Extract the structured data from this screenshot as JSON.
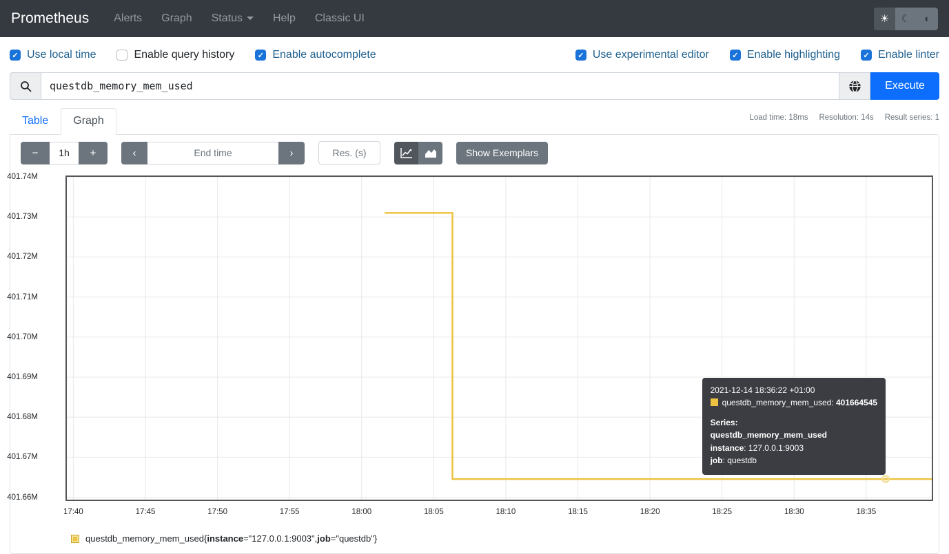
{
  "navbar": {
    "brand": "Prometheus",
    "items": [
      {
        "label": "Alerts"
      },
      {
        "label": "Graph"
      },
      {
        "label": "Status",
        "dropdown": true
      },
      {
        "label": "Help"
      },
      {
        "label": "Classic UI"
      }
    ],
    "theme": {
      "light_icon": "☀",
      "dark_icon": "☾",
      "auto_icon": "◐",
      "active": "light"
    }
  },
  "settings": {
    "left": [
      {
        "label": "Use local time",
        "checked": true
      },
      {
        "label": "Enable query history",
        "checked": false
      },
      {
        "label": "Enable autocomplete",
        "checked": true
      }
    ],
    "right": [
      {
        "label": "Use experimental editor",
        "checked": true
      },
      {
        "label": "Enable highlighting",
        "checked": true
      },
      {
        "label": "Enable linter",
        "checked": true
      }
    ],
    "check_glyph": "✓"
  },
  "query": {
    "value": "questdb_memory_mem_used",
    "execute_label": "Execute"
  },
  "tabs": {
    "table": "Table",
    "graph": "Graph"
  },
  "stats": {
    "load_time": "Load time: 18ms",
    "resolution": "Resolution: 14s",
    "result_series": "Result series: 1"
  },
  "toolbar": {
    "minus": "−",
    "range": "1h",
    "plus": "+",
    "prev": "‹",
    "end_time_placeholder": "End time",
    "next": "›",
    "res_placeholder": "Res. (s)",
    "show_exemplars": "Show Exemplars"
  },
  "chart_data": {
    "type": "line",
    "x_axis": "time (local), ticks every 5 minutes",
    "x_range_minutes": [
      -0.45,
      59.55
    ],
    "x_ticks": [
      {
        "m": 0,
        "label": "17:40"
      },
      {
        "m": 5,
        "label": "17:45"
      },
      {
        "m": 10,
        "label": "17:50"
      },
      {
        "m": 15,
        "label": "17:55"
      },
      {
        "m": 20,
        "label": "18:00"
      },
      {
        "m": 25,
        "label": "18:05"
      },
      {
        "m": 30,
        "label": "18:10"
      },
      {
        "m": 35,
        "label": "18:15"
      },
      {
        "m": 40,
        "label": "18:20"
      },
      {
        "m": 45,
        "label": "18:25"
      },
      {
        "m": 50,
        "label": "18:30"
      },
      {
        "m": 55,
        "label": "18:35"
      }
    ],
    "y_range": [
      401659400,
      401740000
    ],
    "y_ticks": [
      {
        "v": 401660000,
        "label": "401.66M"
      },
      {
        "v": 401670000,
        "label": "401.67M"
      },
      {
        "v": 401680000,
        "label": "401.68M"
      },
      {
        "v": 401690000,
        "label": "401.69M"
      },
      {
        "v": 401700000,
        "label": "401.70M"
      },
      {
        "v": 401710000,
        "label": "401.71M"
      },
      {
        "v": 401720000,
        "label": "401.72M"
      },
      {
        "v": 401730000,
        "label": "401.73M"
      },
      {
        "v": 401740000,
        "label": "401.74M"
      }
    ],
    "series": [
      {
        "name": "questdb_memory_mem_used{instance=\"127.0.0.1:9003\", job=\"questdb\"}",
        "color": "#edc240",
        "points": [
          [
            21.6,
            401731000
          ],
          [
            26.3,
            401731000
          ],
          [
            26.3,
            401664545
          ],
          [
            59.55,
            401664545
          ]
        ]
      }
    ],
    "hover_point": {
      "x": 56.35,
      "y": 401664545
    },
    "grid_color": "#e8e8e8"
  },
  "tooltip": {
    "timestamp": "2021-12-14 18:36:22 +01:00",
    "metric_label": "questdb_memory_mem_used:",
    "value": "401664545",
    "series_heading": "Series:",
    "series_name": "questdb_memory_mem_used",
    "instance_key": "instance",
    "instance_val": ": 127.0.0.1:9003",
    "job_key": "job",
    "job_val": ": questdb"
  },
  "legend": {
    "metric": "questdb_memory_mem_used",
    "brace_open": "{",
    "label1_key": "instance",
    "label1_val": "=\"127.0.0.1:9003\", ",
    "label2_key": "job",
    "label2_val": "=\"questdb\"",
    "brace_close": "}"
  },
  "colors": {
    "accent": "#0d6efd",
    "navbar_bg": "#343a40",
    "secondary_btn": "#6c757d",
    "series": "#edc240",
    "tooltip_bg": "#3b3d42"
  }
}
